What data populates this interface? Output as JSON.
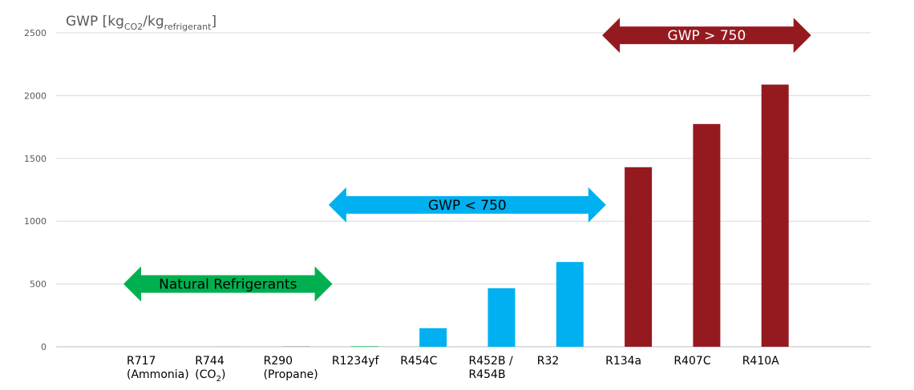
{
  "chart_data": {
    "type": "bar",
    "ylabel": {
      "main": "GWP [kg",
      "sub1": "CO2",
      "slash": "/kg",
      "sub2": "refrigerant",
      "close": "]"
    },
    "ylim": [
      0,
      2500
    ],
    "yticks": [
      0,
      500,
      1000,
      1500,
      2000,
      2500
    ],
    "grid": true,
    "categories": [
      {
        "line1": "R717",
        "line2": "(Ammonia)",
        "line2_sub": "",
        "line2_end": ""
      },
      {
        "line1": "R744",
        "line2": "(CO",
        "line2_sub": "2",
        "line2_end": ")"
      },
      {
        "line1": "R290",
        "line2": "(Propane)",
        "line2_sub": "",
        "line2_end": ""
      },
      {
        "line1": "R1234yf",
        "line2": "",
        "line2_sub": "",
        "line2_end": ""
      },
      {
        "line1": "R454C",
        "line2": "",
        "line2_sub": "",
        "line2_end": ""
      },
      {
        "line1": "R452B /",
        "line2": "R454B",
        "line2_sub": "",
        "line2_end": ""
      },
      {
        "line1": "R32",
        "line2": "",
        "line2_sub": "",
        "line2_end": ""
      },
      {
        "line1": "R134a",
        "line2": "",
        "line2_sub": "",
        "line2_end": ""
      },
      {
        "line1": "R407C",
        "line2": "",
        "line2_sub": "",
        "line2_end": ""
      },
      {
        "line1": "R410A",
        "line2": "",
        "line2_sub": "",
        "line2_end": ""
      }
    ],
    "values": [
      0,
      1,
      3,
      4,
      148,
      466,
      675,
      1430,
      1774,
      2088
    ],
    "bar_colors": [
      "#00b050",
      "#7f7f7f",
      "#7f7f7f",
      "#00b050",
      "#00b0f0",
      "#00b0f0",
      "#00b0f0",
      "#951a20",
      "#951a20",
      "#951a20"
    ],
    "annotations": [
      {
        "text": "Natural Refrigerants",
        "color": "#00b050",
        "text_color": "#000000",
        "from_category": 0,
        "to_category": 2,
        "level": 500
      },
      {
        "text": "GWP < 750",
        "color": "#00b0f0",
        "text_color": "#000000",
        "from_category": 3,
        "to_category": 6,
        "level": 1130
      },
      {
        "text": "GWP > 750",
        "color": "#951a20",
        "text_color": "#ffffff",
        "from_category": 7,
        "to_category": 9,
        "level": 2480
      }
    ]
  }
}
